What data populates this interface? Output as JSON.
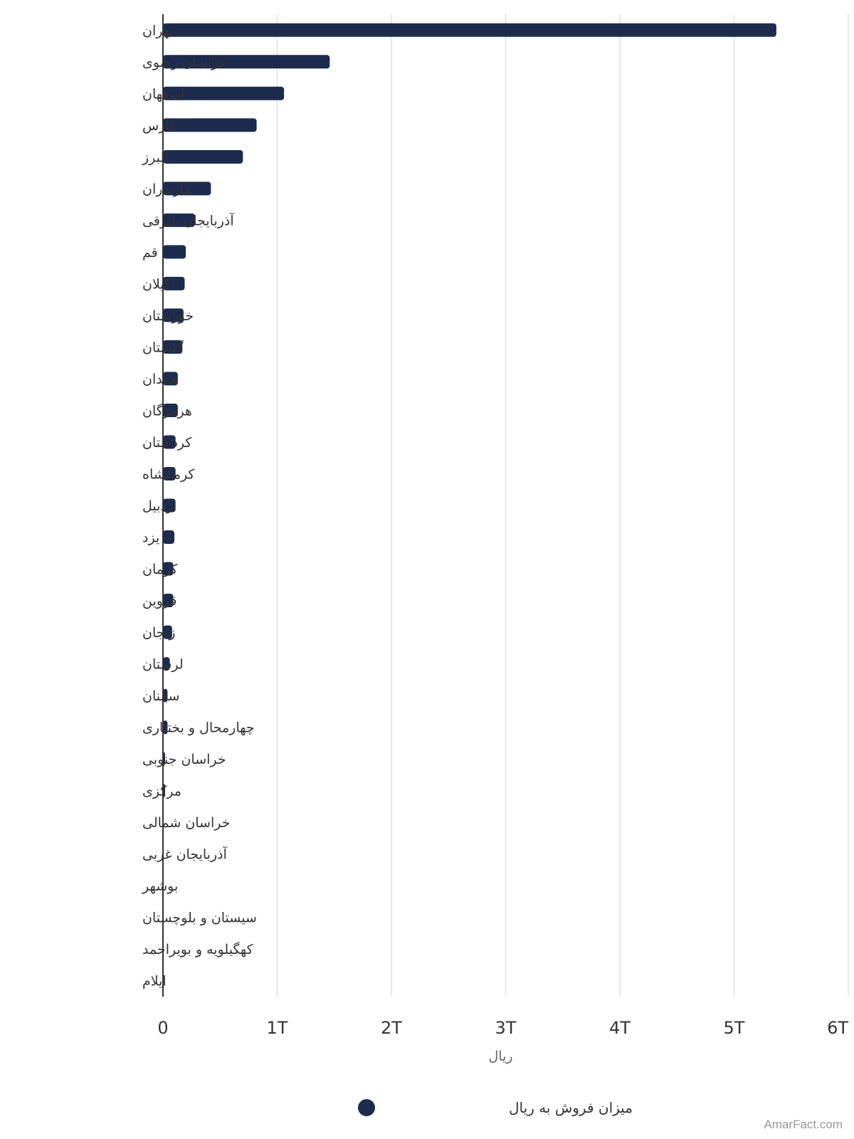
{
  "chart_data": {
    "type": "bar",
    "orientation": "horizontal",
    "categories": [
      "تهران",
      "خراسان رضوی",
      "اصفهان",
      "فارس",
      "البرز",
      "مازندران",
      "آذربایجان شرقی",
      "قم",
      "گیلان",
      "خوزستان",
      "گلستان",
      "همدان",
      "هرمزگان",
      "کردستان",
      "کرمانشاه",
      "اردبیل",
      "یزد",
      "کرمان",
      "قزوین",
      "زنجان",
      "لرستان",
      "سمنان",
      "چهارمحال و بختیاری",
      "خراسان جنوبی",
      "مرکزی",
      "خراسان شمالی",
      "آذربایجان غربی",
      "بوشهر",
      "سیستان و بلوچستان",
      "کهگیلویه و بویراحمد",
      "ایلام"
    ],
    "series": [
      {
        "name": "میزان فروش به ریال",
        "color": "#1d2b4f",
        "values": [
          5370000000000,
          1460000000000,
          1060000000000,
          820000000000,
          700000000000,
          420000000000,
          280000000000,
          200000000000,
          190000000000,
          180000000000,
          170000000000,
          130000000000,
          130000000000,
          110000000000,
          110000000000,
          110000000000,
          100000000000,
          90000000000,
          90000000000,
          80000000000,
          60000000000,
          40000000000,
          40000000000,
          15000000000,
          12000000000,
          0,
          0,
          0,
          0,
          0,
          0
        ]
      }
    ],
    "xlim": [
      0,
      6000000000000
    ],
    "ticks": [
      "0",
      "1T",
      "2T",
      "3T",
      "4T",
      "5T",
      "6T"
    ],
    "xlabel": "ریال",
    "ylabel": "",
    "title": "",
    "grid": true,
    "legend_position": "bottom-center"
  },
  "credit": "AmarFact.com"
}
